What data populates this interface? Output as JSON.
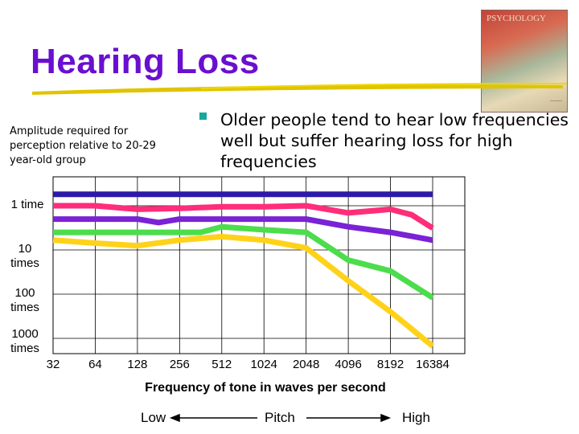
{
  "slide": {
    "title": "Hearing Loss",
    "cover_text": "PSYCHOLOGY",
    "bullet": "Older people tend to hear low frequencies well but suffer hearing loss for high frequencies",
    "ylabel": "Amplitude required for perception relative to 20-29 year-old group",
    "xlabel": "Frequency of tone in waves per second",
    "scale": {
      "low": "Low",
      "middle": "Pitch",
      "high": "High"
    },
    "colors": {
      "title": "#6a0fd0",
      "bullet": "#16a89a"
    }
  },
  "chart_data": {
    "type": "line",
    "title": "",
    "xlabel": "Frequency of tone in waves per second",
    "ylabel": "Amplitude required for perception relative to 20-29 year-old group",
    "x": [
      32,
      64,
      128,
      256,
      512,
      1024,
      2048,
      4096,
      8192,
      16384
    ],
    "x_scale": "log2",
    "y_ticks": [
      "1 time",
      "10 times",
      "100 times",
      "1000 times"
    ],
    "y_tick_values": [
      1,
      10,
      100,
      1000
    ],
    "y_scale": "log10",
    "grid": true,
    "series": [
      {
        "color": "#2e1aa8",
        "x": [
          32,
          16384
        ],
        "y": [
          0.55,
          0.55
        ]
      },
      {
        "color": "#ff2d7a",
        "x": [
          32,
          64,
          128,
          256,
          512,
          1024,
          2048,
          4096,
          8192,
          11585,
          16384
        ],
        "y": [
          1,
          1,
          1.2,
          1.15,
          1.05,
          1.05,
          1,
          1.45,
          1.2,
          1.6,
          3.2
        ]
      },
      {
        "color": "#7a22d6",
        "x": [
          32,
          64,
          128,
          181,
          256,
          512,
          1024,
          2048,
          4096,
          8192,
          16384
        ],
        "y": [
          2,
          2,
          2,
          2.4,
          2,
          2,
          2,
          2,
          3,
          4,
          6
        ]
      },
      {
        "color": "#4cdd4c",
        "x": [
          32,
          64,
          128,
          256,
          362,
          512,
          1024,
          2048,
          4096,
          8192,
          16384
        ],
        "y": [
          4,
          4,
          4,
          4,
          4,
          3,
          3.5,
          4,
          17,
          30,
          120
        ]
      },
      {
        "color": "#ffd21a",
        "x": [
          32,
          64,
          128,
          256,
          512,
          1024,
          2048,
          4096,
          8192,
          16384
        ],
        "y": [
          6,
          7,
          8,
          6,
          5,
          6,
          9,
          50,
          250,
          1500
        ]
      }
    ]
  }
}
